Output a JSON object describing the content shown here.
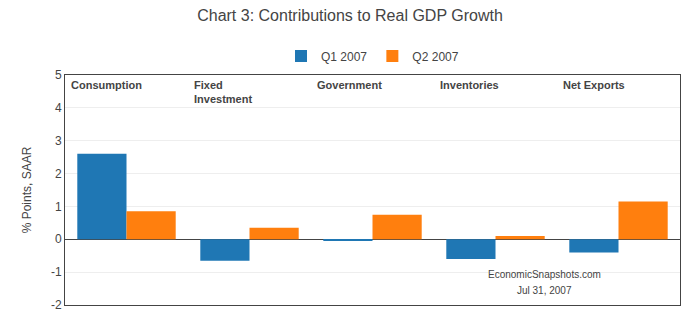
{
  "chart_data": {
    "type": "bar",
    "title": "Chart 3: Contributions to Real GDP Growth",
    "ylabel": "% Points, SAAR",
    "categories": [
      "Consumption",
      "Fixed\nInvestment",
      "Government",
      "Inventories",
      "Net Exports"
    ],
    "series": [
      {
        "name": "Q1 2007",
        "values": [
          2.6,
          -0.65,
          -0.05,
          -0.6,
          -0.4
        ]
      },
      {
        "name": "Q2 2007",
        "values": [
          0.85,
          0.35,
          0.75,
          0.1,
          1.15
        ]
      }
    ],
    "ylim": [
      -2,
      5
    ],
    "yticks": [
      -2,
      -1,
      0,
      1,
      2,
      3,
      4,
      5
    ],
    "grid": true,
    "legend": "top",
    "tick_labels": "y",
    "annotations": [
      "EconomicSnapshots.com",
      "Jul 31, 2007"
    ]
  }
}
